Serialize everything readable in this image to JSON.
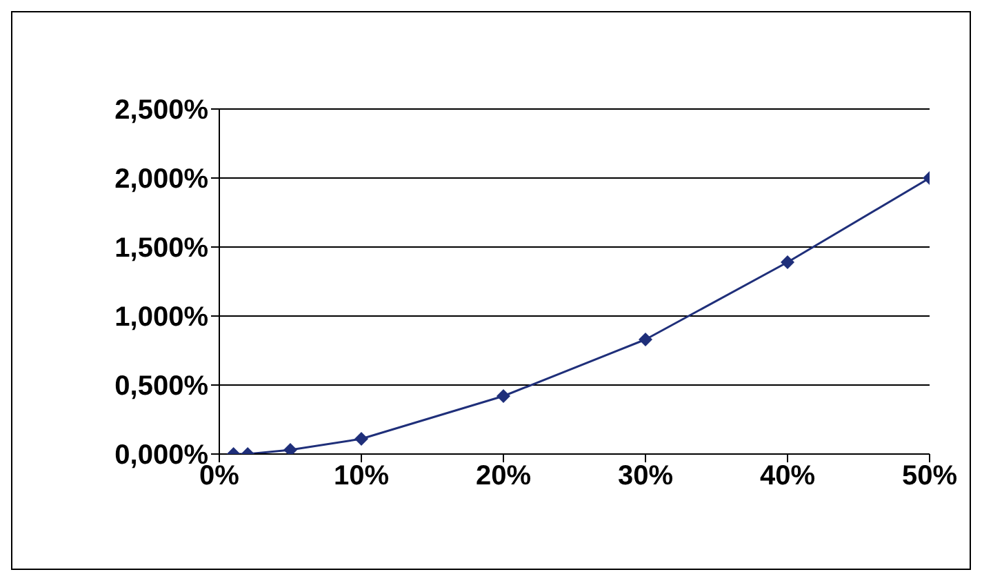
{
  "chart_data": {
    "type": "line",
    "x": [
      1,
      2,
      5,
      10,
      20,
      30,
      40,
      50
    ],
    "series": [
      {
        "color": "#1f2f7a",
        "values": [
          0,
          0,
          0.03,
          0.11,
          0.42,
          0.83,
          1.39,
          2.0
        ]
      }
    ],
    "xlim": [
      0,
      50
    ],
    "xticks": [
      {
        "value": 0,
        "label": "0%"
      },
      {
        "value": 10,
        "label": "10%"
      },
      {
        "value": 20,
        "label": "20%"
      },
      {
        "value": 30,
        "label": "30%"
      },
      {
        "value": 40,
        "label": "40%"
      },
      {
        "value": 50,
        "label": "50%"
      }
    ],
    "ylim": [
      0,
      2.5
    ],
    "yticks": [
      {
        "value": 0,
        "label": "0,000%"
      },
      {
        "value": 0.5,
        "label": "0,500%"
      },
      {
        "value": 1,
        "label": "1,000%"
      },
      {
        "value": 1.5,
        "label": "1,500%"
      },
      {
        "value": 2,
        "label": "2,000%"
      },
      {
        "value": 2.5,
        "label": "2,500%"
      }
    ],
    "grid": "y",
    "marker": "diamond",
    "legend": false
  }
}
